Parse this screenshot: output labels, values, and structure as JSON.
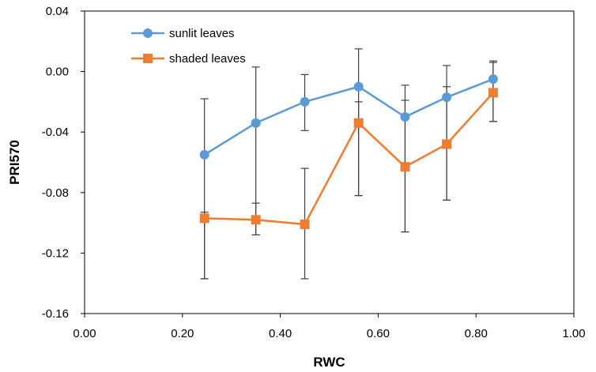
{
  "chart_data": {
    "type": "line",
    "title": "",
    "xlabel": "RWC",
    "ylabel": "PRI570",
    "xlim": [
      0,
      1
    ],
    "ylim": [
      -0.16,
      0.04
    ],
    "xticks": [
      0.0,
      0.2,
      0.4,
      0.6,
      0.8,
      1.0
    ],
    "xtick_labels": [
      "0.00",
      "0.20",
      "0.40",
      "0.60",
      "0.80",
      "1.00"
    ],
    "yticks": [
      0.04,
      0.0,
      -0.04,
      -0.08,
      -0.12,
      -0.16
    ],
    "ytick_labels": [
      "0.04",
      "0.00",
      "-0.04",
      "-0.08",
      "-0.12",
      "-0.16"
    ],
    "grid": false,
    "legend_position": "top-left",
    "series": [
      {
        "name": "sunlit leaves",
        "color": "#5b9bd5",
        "marker": "circle",
        "x": [
          0.245,
          0.35,
          0.45,
          0.56,
          0.655,
          0.74,
          0.835
        ],
        "y": [
          -0.055,
          -0.034,
          -0.02,
          -0.01,
          -0.03,
          -0.017,
          -0.005
        ],
        "err_low": [
          -0.137,
          -0.108,
          -0.039,
          -0.082,
          -0.106,
          -0.085,
          -0.033
        ],
        "err_high": [
          -0.018,
          0.003,
          -0.002,
          0.015,
          -0.009,
          0.004,
          0.006
        ]
      },
      {
        "name": "shaded leaves",
        "color": "#ed7d31",
        "marker": "square",
        "x": [
          0.245,
          0.35,
          0.45,
          0.56,
          0.655,
          0.74,
          0.835
        ],
        "y": [
          -0.097,
          -0.098,
          -0.101,
          -0.034,
          -0.063,
          -0.048,
          -0.014
        ],
        "err_low": [
          -0.137,
          -0.108,
          -0.137,
          -0.082,
          -0.106,
          -0.085,
          -0.033
        ],
        "err_high": [
          -0.093,
          -0.087,
          -0.064,
          -0.02,
          -0.019,
          -0.01,
          0.007
        ]
      }
    ]
  }
}
